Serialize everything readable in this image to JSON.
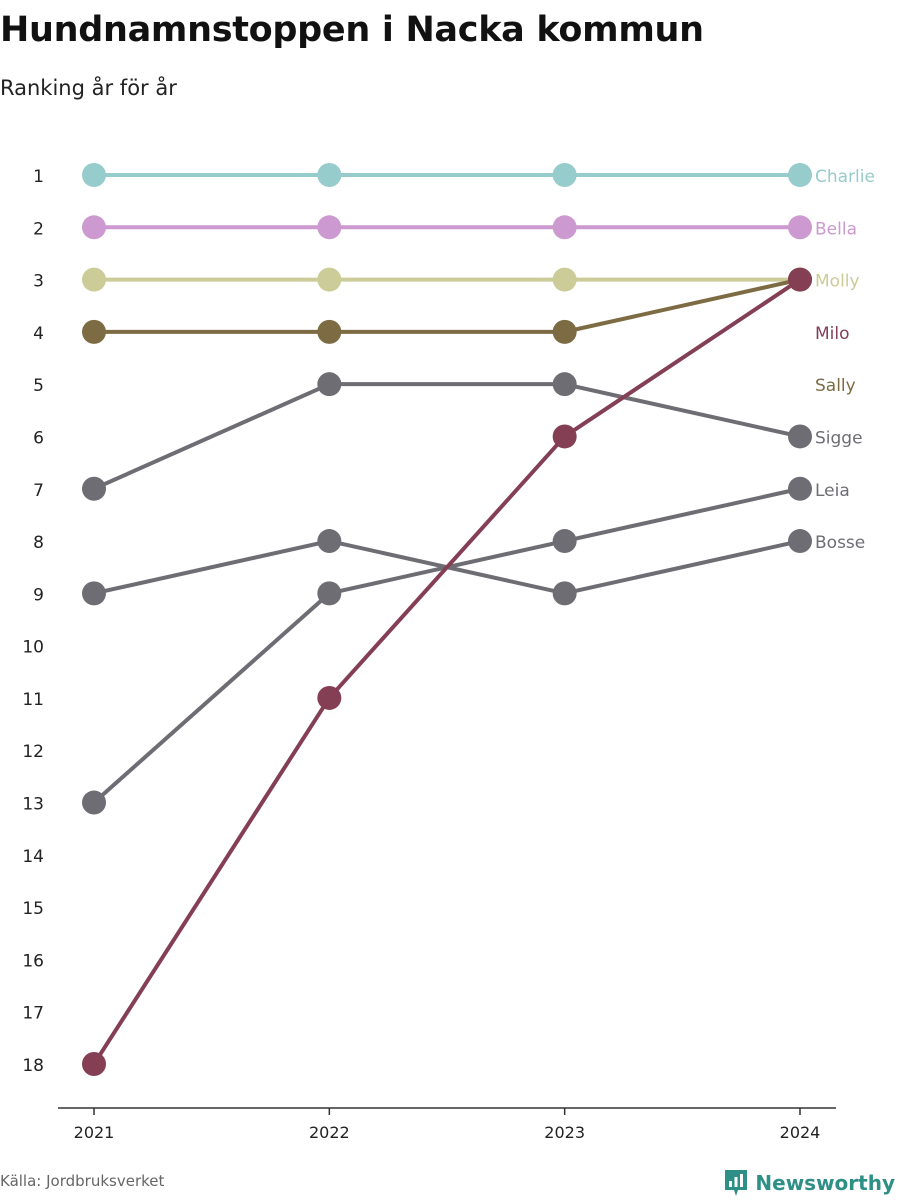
{
  "title": "Hundnamnstoppen i Nacka kommun",
  "subtitle": "Ranking år för år",
  "source": "Källa: Jordbruksverket",
  "brand": {
    "name": "Newsworthy",
    "icon": "newsworthy-logo-icon",
    "color": "#2e8f87"
  },
  "chart_data": {
    "type": "line",
    "subtype": "bump-chart",
    "x": [
      "2021",
      "2022",
      "2023",
      "2024"
    ],
    "y_ticks": [
      1,
      2,
      3,
      4,
      5,
      6,
      7,
      8,
      9,
      10,
      11,
      12,
      13,
      14,
      15,
      16,
      17,
      18
    ],
    "ylim": [
      1,
      18
    ],
    "y_reversed": true,
    "grid": false,
    "legend": "direct labels at right end of lines",
    "series": [
      {
        "name": "Charlie",
        "values": [
          1,
          1,
          1,
          1
        ],
        "color": "#96cccb"
      },
      {
        "name": "Bella",
        "values": [
          2,
          2,
          2,
          2
        ],
        "color": "#cc99d0"
      },
      {
        "name": "Molly",
        "values": [
          3,
          3,
          3,
          3
        ],
        "color": "#cccc99"
      },
      {
        "name": "Sally",
        "values": [
          4,
          4,
          4,
          3
        ],
        "color": "#7d6b43"
      },
      {
        "name": "Sigge",
        "values": [
          7,
          5,
          5,
          6
        ],
        "color": "#6e6d74"
      },
      {
        "name": "Leia",
        "values": [
          13,
          9,
          8,
          7
        ],
        "color": "#6e6d74"
      },
      {
        "name": "Bosse",
        "values": [
          9,
          8,
          9,
          8
        ],
        "color": "#6e6d74"
      },
      {
        "name": "Milo",
        "values": [
          18,
          11,
          6,
          3
        ],
        "color": "#843f55"
      }
    ],
    "end_labels": [
      "Charlie",
      "Bella",
      "Molly",
      "Milo",
      "Sally",
      "Sigge",
      "Leia",
      "Bosse"
    ]
  }
}
